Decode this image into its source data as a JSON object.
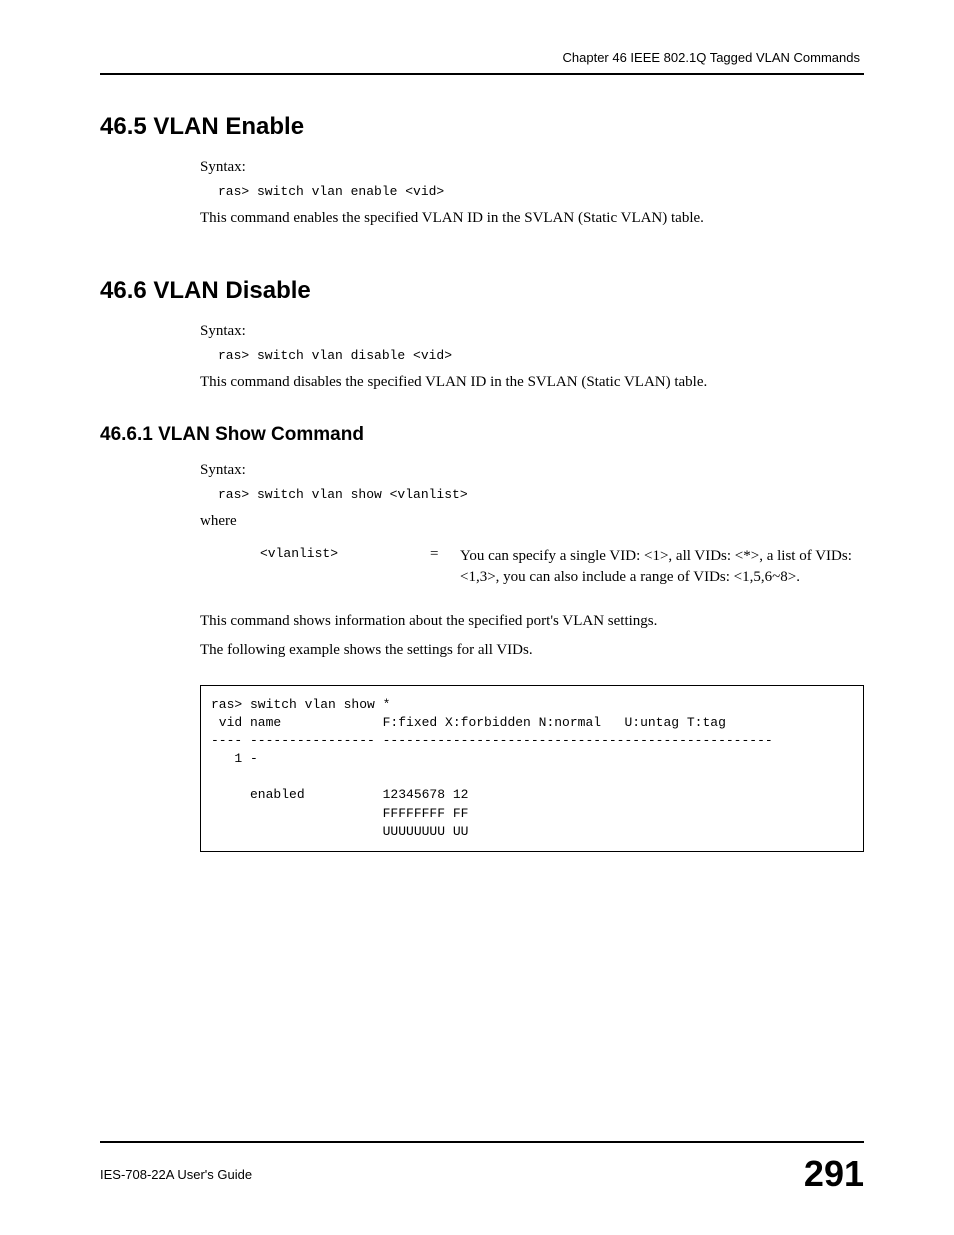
{
  "header": {
    "chapter_text": "Chapter 46 IEEE 802.1Q Tagged VLAN Commands"
  },
  "sections": {
    "s465": {
      "heading": "46.5  VLAN Enable",
      "syntax_label": "Syntax:",
      "code": "ras> switch vlan enable <vid>",
      "desc": "This command enables the specified VLAN ID in the SVLAN (Static VLAN) table."
    },
    "s466": {
      "heading": "46.6  VLAN Disable",
      "syntax_label": "Syntax:",
      "code": "ras> switch vlan disable <vid>",
      "desc": "This command disables the specified VLAN ID in the SVLAN (Static VLAN) table."
    },
    "s4661": {
      "heading": "46.6.1  VLAN Show Command",
      "syntax_label": "Syntax:",
      "code": "ras> switch vlan show <vlanlist>",
      "where_label": "where",
      "param": "<vlanlist>",
      "eq": "=",
      "param_desc": "You can specify a single VID: <1>, all VIDs: <*>, a list of VIDs: <1,3>, you can also include a range of VIDs: <1,5,6~8>.",
      "desc1": "This command shows information about the specified port's VLAN settings.",
      "desc2": "The following example shows the settings for all VIDs.",
      "codebox": "ras> switch vlan show *\n vid name             F:fixed X:forbidden N:normal   U:untag T:tag\n---- ---------------- --------------------------------------------------\n   1 -\n\n     enabled          12345678 12\n                      FFFFFFFF FF\n                      UUUUUUUU UU\n"
    }
  },
  "footer": {
    "guide_text": "IES-708-22A User's Guide",
    "page_number": "291"
  }
}
